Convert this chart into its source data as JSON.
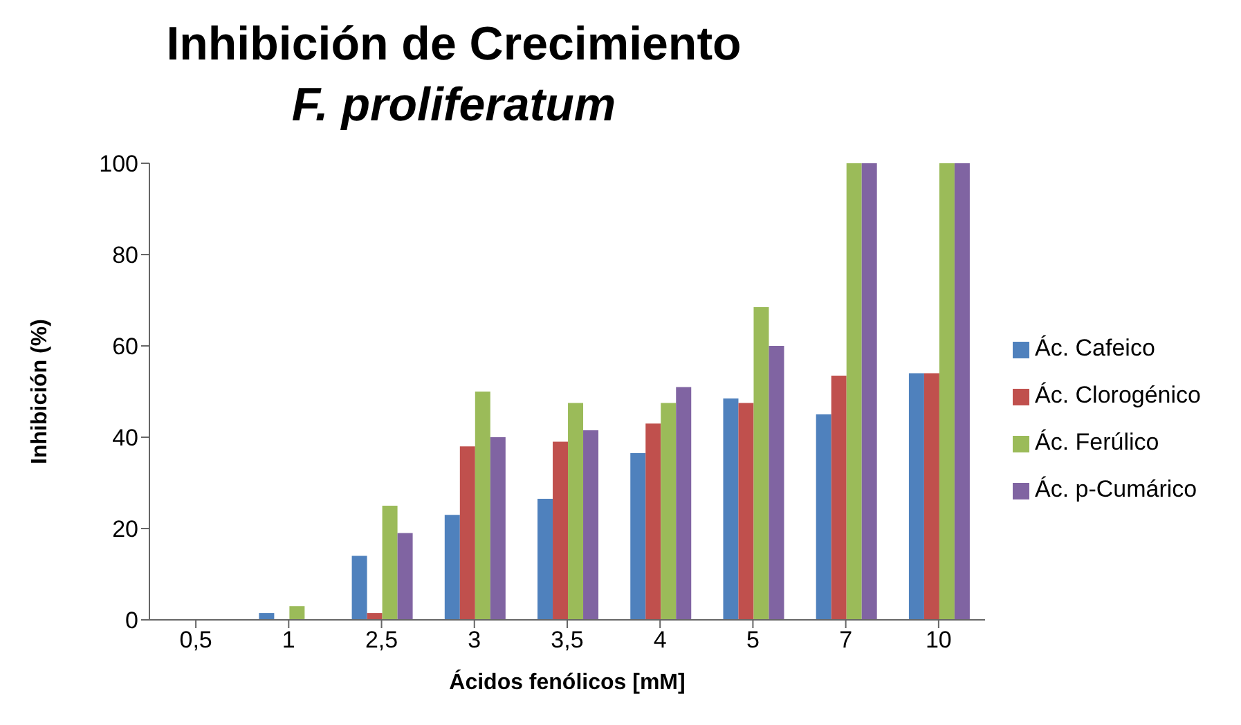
{
  "chart_data": {
    "type": "bar",
    "title": "Inhibición de Crecimiento",
    "subtitle": "F. proliferatum",
    "xlabel": "Ácidos fenólicos [mM]",
    "ylabel": "Inhibición (%)",
    "categories": [
      "0,5",
      "1",
      "2,5",
      "3",
      "3,5",
      "4",
      "5",
      "7",
      "10"
    ],
    "series": [
      {
        "name": "Ác. Cafeico",
        "color": "#4f81bd",
        "values": [
          0,
          1.5,
          14,
          23,
          26.5,
          36.5,
          48.5,
          45,
          54
        ]
      },
      {
        "name": "Ác. Clorogénico",
        "color": "#c0504d",
        "values": [
          0,
          0,
          1.5,
          38,
          39,
          43,
          47.5,
          53.5,
          54
        ]
      },
      {
        "name": "Ác. Ferúlico",
        "color": "#9bbb59",
        "values": [
          0,
          3,
          25,
          50,
          47.5,
          47.5,
          68.5,
          100,
          100
        ]
      },
      {
        "name": "Ác. p-Cumárico",
        "color": "#8064a2",
        "values": [
          0,
          0,
          19,
          40,
          41.5,
          51,
          60,
          100,
          100
        ]
      }
    ],
    "ylim": [
      0,
      100
    ],
    "yticks": [
      0,
      20,
      40,
      60,
      80,
      100
    ],
    "grid": false,
    "legend": "right"
  }
}
